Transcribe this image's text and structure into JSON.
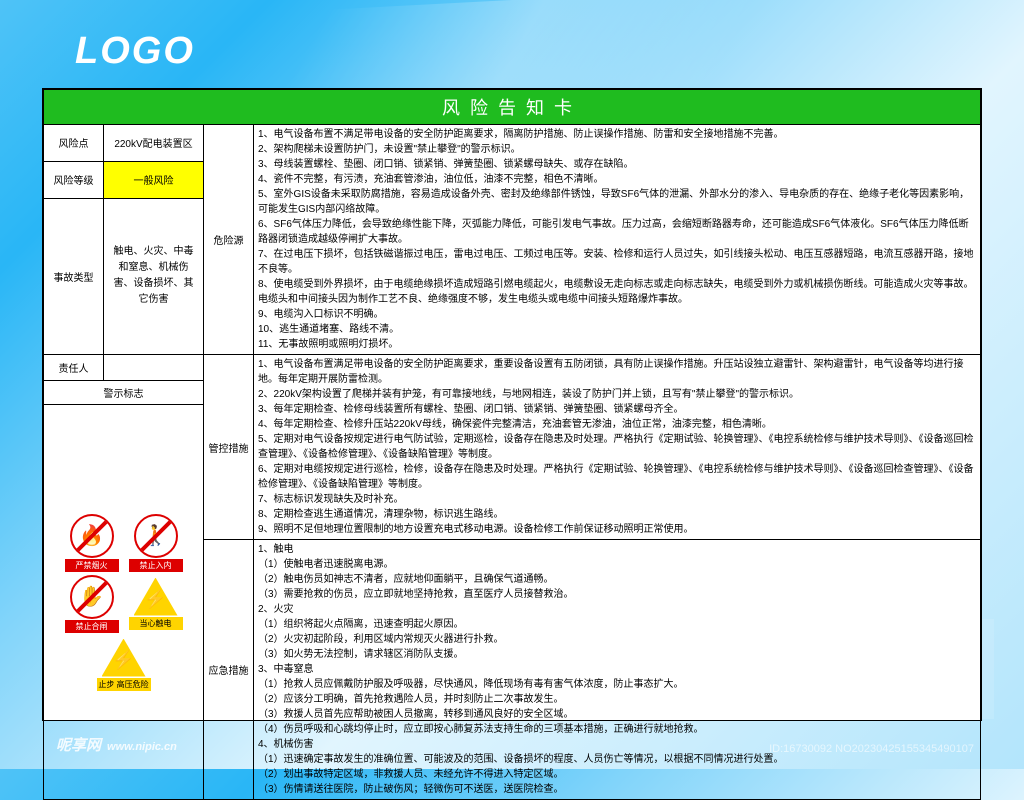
{
  "logo": "LOGO",
  "title": "风险告知卡",
  "labels": {
    "riskPoint": "风险点",
    "riskLevel": "风险等级",
    "accidentType": "事故类型",
    "hazardSource": "危险源",
    "responsible": "责任人",
    "warningSigns": "警示标志",
    "controlMeasures": "管控措施",
    "emergencyMeasures": "应急措施"
  },
  "values": {
    "riskPoint": "220kV配电装置区",
    "riskLevel": "一般风险",
    "accidentType": "触电、火灾、中毒和窒息、机械伤害、设备损坏、其它伤害"
  },
  "hazard": [
    "1、电气设备布置不满足带电设备的安全防护距离要求，隔离防护措施、防止误操作措施、防雷和安全接地措施不完善。",
    "2、架构爬梯未设置防护门，未设置\"禁止攀登\"的警示标识。",
    "3、母线装置螺栓、垫圈、闭口销、锁紧销、弹簧垫圈、锁紧螺母缺失、或存在缺陷。",
    "4、瓷件不完整，有污渍，充油套管渗油，油位低，油漆不完整，相色不清晰。",
    "5、室外GIS设备未采取防腐措施，容易造成设备外壳、密封及绝缘部件锈蚀，导致SF6气体的泄漏、外部水分的渗入、导电杂质的存在、绝缘子老化等因素影响，可能发生GIS内部闪络故障。",
    "6、SF6气体压力降低，会导致绝缘性能下降，灭弧能力降低，可能引发电气事故。压力过高，会缩短断路器寿命，还可能造成SF6气体液化。SF6气体压力降低断路器闭锁造成越级停闸扩大事故。",
    "7、在过电压下损坏，包括铁磁谐振过电压，雷电过电压、工频过电压等。安装、检修和运行人员过失，如引线接头松动、电压互感器短路，电流互感器开路，接地不良等。",
    "8、使电缆受到外界损坏，由于电缆绝缘损坏造成短路引燃电缆起火，电缆敷设无走向标志或走向标志缺失，电缆受到外力或机械损伤断线。可能造成火灾等事故。电缆头和中间接头因为制作工艺不良、绝缘强度不够，发生电缆头或电缆中间接头短路爆炸事故。",
    "9、电缆沟入口标识不明确。",
    "10、逃生通道堵塞、路线不清。",
    "11、无事故照明或照明灯损坏。"
  ],
  "control": [
    "1、电气设备布置满足带电设备的安全防护距离要求，重要设备设置有五防闭锁，具有防止误操作措施。升压站设独立避雷针、架构避雷针，电气设备等均进行接地。每年定期开展防雷检测。",
    "2、220kV架构设置了爬梯并装有护笼，有可靠接地线，与地网相连，装设了防护门并上锁，且写有\"禁止攀登\"的警示标识。",
    "3、每年定期检查、检修母线装置所有螺栓、垫圈、闭口销、锁紧销、弹簧垫圈、锁紧螺母齐全。",
    "4、每年定期检查、检修升压站220kV母线，确保瓷件完整清洁，充油套管无渗油，油位正常，油漆完整，相色清晰。",
    "5、定期对电气设备按规定进行电气防试验，定期巡检，设备存在隐患及时处理。严格执行《定期试验、轮换管理》、《电控系统检修与维护技术导则》、《设备巡回检查管理》、《设备检修管理》、《设备缺陷管理》等制度。",
    "6、定期对电缆按规定进行巡检，检修，设备存在隐患及时处理。严格执行《定期试验、轮换管理》、《电控系统检修与维护技术导则》、《设备巡回检查管理》、《设备检修管理》、《设备缺陷管理》等制度。",
    "7、标志标识发现缺失及时补充。",
    "8、定期检查逃生通道情况，清理杂物，标识逃生路线。",
    "9、照明不足但地理位置限制的地方设置充电式移动电源。设备检修工作前保证移动照明正常使用。"
  ],
  "emergency": [
    "1、触电",
    "（1）使触电者迅速脱离电源。",
    "（2）触电伤员如神志不清者，应就地仰面躺平，且确保气道通畅。",
    "（3）需要抢救的伤员，应立即就地坚持抢救，直至医疗人员接替救治。",
    "2、火灾",
    "（1）组织将起火点隔离，迅速查明起火原因。",
    "（2）火灾初起阶段，利用区域内常规灭火器进行扑救。",
    "（3）如火势无法控制，请求辖区消防队支援。",
    "3、中毒窒息",
    "（1）抢救人员应佩戴防护服及呼吸器，尽快通风，降低现场有毒有害气体浓度，防止事态扩大。",
    "（2）应该分工明确，首先抢救遇险人员，并时刻防止二次事故发生。",
    "（3）救援人员首先应帮助被困人员撤离，转移到通风良好的安全区域。",
    "（4）伤员呼吸和心跳均停止时，应立即按心肺复苏法支持生命的三项基本措施，正确进行就地抢救。",
    "4、机械伤害",
    "（1）迅速确定事故发生的准确位置、可能波及的范围、设备损坏的程度、人员伤亡等情况，以根据不同情况进行处置。",
    "（2）划出事故特定区域，非救援人员、未经允许不得进入特定区域。",
    "（3）伤情请送往医院，防止破伤风；轻微伤可不送医，送医院检查。"
  ],
  "signs": [
    {
      "label": "严禁烟火",
      "type": "p",
      "icon": "🔥"
    },
    {
      "label": "禁止入内",
      "type": "p",
      "icon": "🚶"
    },
    {
      "label": "禁止合闸",
      "type": "p",
      "icon": "✋"
    },
    {
      "label": "当心触电",
      "type": "t",
      "icon": "⚡"
    },
    {
      "label": "止步 高压危险",
      "type": "t",
      "icon": "⚡"
    }
  ],
  "footer": {
    "site": "呢享网",
    "url": "www.nipic.cn",
    "id": "ID:16730092 NO20230425155345490107"
  },
  "colors": {
    "titleBg": "#1fbc1f",
    "highlight": "#ffff00"
  }
}
